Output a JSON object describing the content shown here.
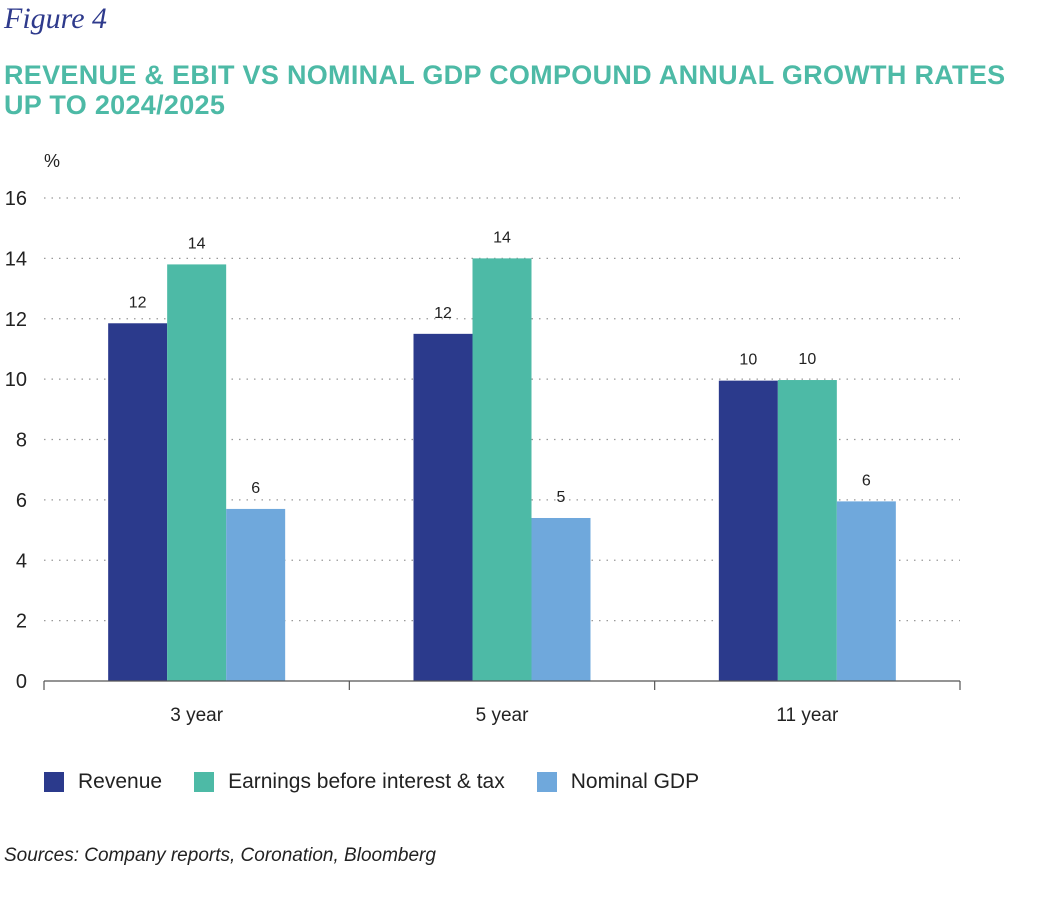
{
  "figure_label": "Figure 4",
  "title": "REVENUE & EBIT VS NOMINAL GDP COMPOUND ANNUAL GROWTH RATES UP TO 2024/2025",
  "source": "Sources: Company reports, Coronation, Bloomberg",
  "colors": {
    "revenue": "#2b3a8c",
    "ebit": "#4dbaa6",
    "gdp": "#6fa8dc",
    "grid": "#999999",
    "title": "#4dbaa6"
  },
  "chart_data": {
    "type": "bar",
    "title": "REVENUE & EBIT VS NOMINAL GDP COMPOUND ANNUAL GROWTH RATES UP TO 2024/2025",
    "ylabel": "%",
    "xlabel": "",
    "ylim": [
      0,
      16
    ],
    "yticks": [
      0,
      2,
      4,
      6,
      8,
      10,
      12,
      14,
      16
    ],
    "grid": true,
    "legend_position": "bottom-left",
    "categories": [
      "3 year",
      "5 year",
      "11 year"
    ],
    "series": [
      {
        "name": "Revenue",
        "color_key": "revenue",
        "values": [
          11.85,
          11.5,
          9.95
        ],
        "labels": [
          "12",
          "12",
          "10"
        ]
      },
      {
        "name": "Earnings before interest & tax",
        "color_key": "ebit",
        "values": [
          13.8,
          14.0,
          9.97
        ],
        "labels": [
          "14",
          "14",
          "10"
        ]
      },
      {
        "name": "Nominal GDP",
        "color_key": "gdp",
        "values": [
          5.7,
          5.4,
          5.95
        ],
        "labels": [
          "6",
          "5",
          "6"
        ]
      }
    ]
  }
}
